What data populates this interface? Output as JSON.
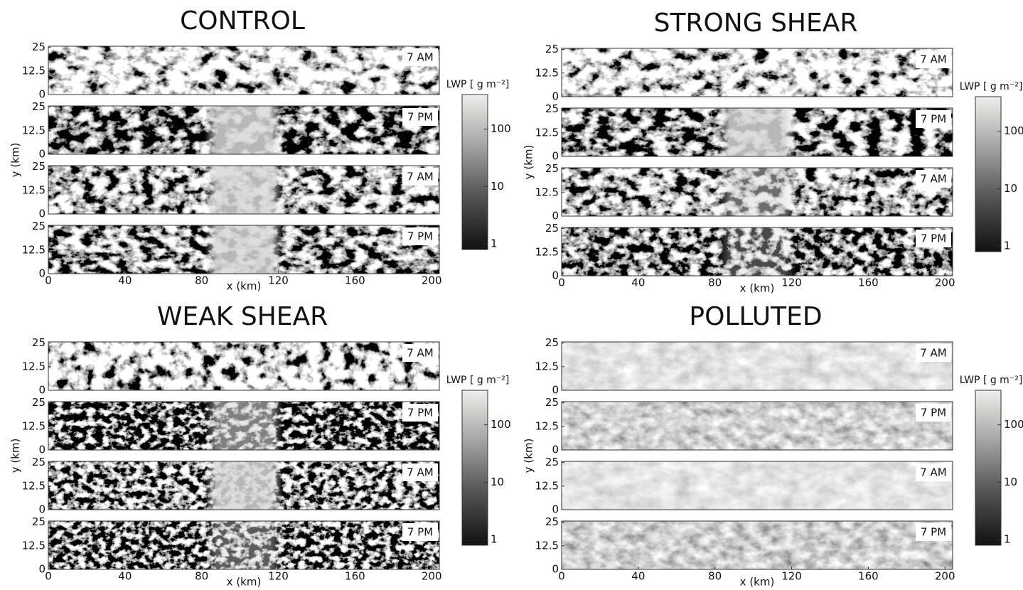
{
  "chart_data": [
    {
      "type": "image-strips",
      "title": "CONTROL",
      "panel_labels": [
        "7 AM",
        "7 PM",
        "7 AM",
        "7 PM"
      ],
      "xlabel": "x (km)",
      "ylabel": "y (km)",
      "xlim": [
        0,
        204
      ],
      "xticks": [
        0,
        40,
        80,
        120,
        160,
        200
      ],
      "ylim": [
        0,
        25.6
      ],
      "yticks": [
        0,
        12.5,
        25
      ],
      "colorbar": {
        "label": "LWP [ g m⁻²]",
        "scale": "log",
        "lim": [
          0.8,
          400
        ],
        "ticks": [
          1,
          10,
          100
        ]
      }
    },
    {
      "type": "image-strips",
      "title": "STRONG SHEAR",
      "panel_labels": [
        "7 AM",
        "7 PM",
        "7 AM",
        "7 PM"
      ],
      "xlabel": "x (km)",
      "ylabel": "y (km)",
      "xlim": [
        0,
        204
      ],
      "xticks": [
        0,
        40,
        80,
        120,
        160,
        200
      ],
      "ylim": [
        0,
        25.6
      ],
      "yticks": [
        0,
        12.5,
        25
      ],
      "colorbar": {
        "label": "LWP [ g m⁻²]",
        "scale": "log",
        "lim": [
          0.8,
          400
        ],
        "ticks": [
          1,
          10,
          100
        ]
      }
    },
    {
      "type": "image-strips",
      "title": "WEAK SHEAR",
      "panel_labels": [
        "7 AM",
        "7 PM",
        "7 AM",
        "7 PM"
      ],
      "xlabel": "x (km)",
      "ylabel": "y (km)",
      "xlim": [
        0,
        204
      ],
      "xticks": [
        0,
        40,
        80,
        120,
        160,
        200
      ],
      "ylim": [
        0,
        25.6
      ],
      "yticks": [
        0,
        12.5,
        25
      ],
      "colorbar": {
        "label": "LWP [ g m⁻²]",
        "scale": "log",
        "lim": [
          0.8,
          400
        ],
        "ticks": [
          1,
          10,
          100
        ]
      }
    },
    {
      "type": "image-strips",
      "title": "POLLUTED",
      "panel_labels": [
        "7 AM",
        "7 PM",
        "7 AM",
        "7 PM"
      ],
      "xlabel": "x (km)",
      "ylabel": "y (km)",
      "xlim": [
        0,
        204
      ],
      "xticks": [
        0,
        40,
        80,
        120,
        160,
        200
      ],
      "ylim": [
        0,
        25.6
      ],
      "yticks": [
        0,
        12.5,
        25
      ],
      "colorbar": {
        "label": "LWP [ g m⁻²]",
        "scale": "log",
        "lim": [
          0.8,
          400
        ],
        "ticks": [
          1,
          10,
          100
        ]
      }
    }
  ]
}
